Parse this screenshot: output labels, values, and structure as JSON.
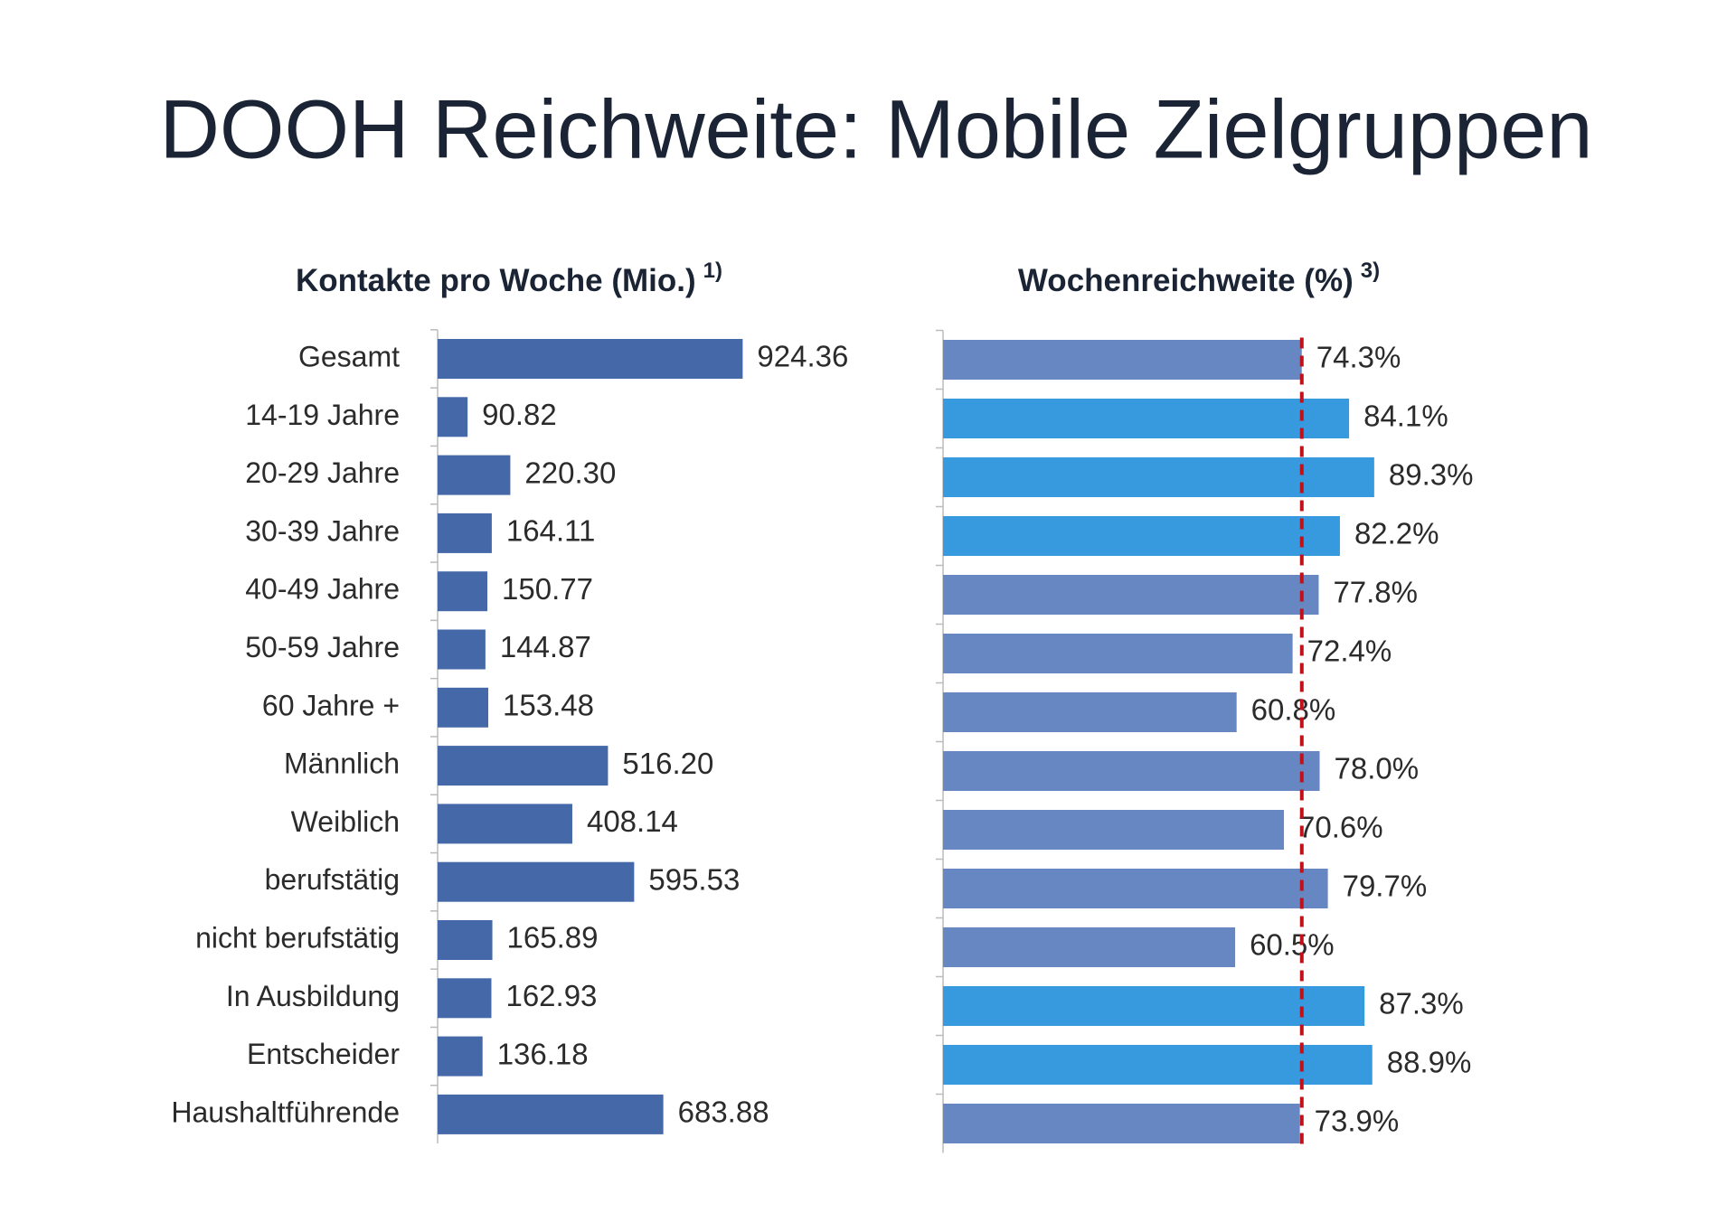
{
  "title": "DOOH Reichweite: Mobile Zielgruppen",
  "chart_data": [
    {
      "type": "hbar",
      "title": "Kontakte pro Woche (Mio.)",
      "title_note": "1)",
      "categories": [
        "Gesamt",
        "14-19 Jahre",
        "20-29 Jahre",
        "30-39 Jahre",
        "40-49 Jahre",
        "50-59 Jahre",
        "60 Jahre +",
        "Männlich",
        "Weiblich",
        "berufstätig",
        "nicht berufstätig",
        "In Ausbildung",
        "Entscheider",
        "Haushaltführende"
      ],
      "values": [
        924.36,
        90.82,
        220.3,
        164.11,
        150.77,
        144.87,
        153.48,
        516.2,
        408.14,
        595.53,
        165.89,
        162.93,
        136.18,
        683.88
      ],
      "value_labels": [
        "924.36",
        "90.82",
        "220.30",
        "164.11",
        "150.77",
        "144.87",
        "153.48",
        "516.20",
        "408.14",
        "595.53",
        "165.89",
        "162.93",
        "136.18",
        "683.88"
      ],
      "color": "#4468a8",
      "xlim": [
        0,
        1000
      ]
    },
    {
      "type": "hbar",
      "title": "Wochenreichweite (%)",
      "title_note": "3)",
      "categories": [
        "Gesamt",
        "14-19 Jahre",
        "20-29 Jahre",
        "30-39 Jahre",
        "40-49 Jahre",
        "50-59 Jahre",
        "60 Jahre +",
        "Männlich",
        "Weiblich",
        "berufstätig",
        "nicht berufstätig",
        "In Ausbildung",
        "Entscheider",
        "Haushaltführende"
      ],
      "values": [
        74.3,
        84.1,
        89.3,
        82.2,
        77.8,
        72.4,
        60.8,
        78.0,
        70.6,
        79.7,
        60.5,
        87.3,
        88.9,
        73.9
      ],
      "value_labels": [
        "74.3%",
        "84.1%",
        "89.3%",
        "82.2%",
        "77.8%",
        "72.4%",
        "60.8%",
        "78.0%",
        "70.6%",
        "79.7%",
        "60.5%",
        "87.3%",
        "88.9%",
        "73.9%"
      ],
      "colors": [
        "#6787c3",
        "#389ade",
        "#389ade",
        "#389ade",
        "#6787c3",
        "#6787c3",
        "#6787c3",
        "#6787c3",
        "#6787c3",
        "#6787c3",
        "#6787c3",
        "#389ade",
        "#389ade",
        "#6787c3"
      ],
      "xlim": [
        0,
        100
      ],
      "reference_line": {
        "value": 74.3,
        "color": "#c0101a"
      }
    }
  ]
}
